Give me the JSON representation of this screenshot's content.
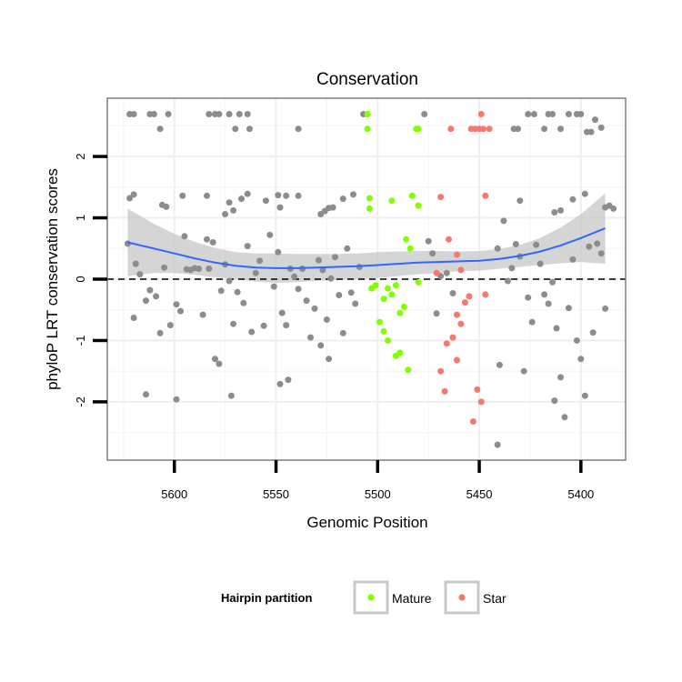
{
  "chart_data": {
    "type": "scatter",
    "title": "Conservation",
    "xlabel": "Genomic Position",
    "ylabel": "phyloP LRT conservation scores",
    "xlim": [
      5633,
      5378
    ],
    "x_reversed": true,
    "ylim": [
      -2.95,
      2.95
    ],
    "x_ticks": [
      5600,
      5550,
      5500,
      5450,
      5400
    ],
    "y_ticks": [
      -2,
      -1,
      0,
      1,
      2
    ],
    "reference_line": {
      "y": 0,
      "style": "dashed"
    },
    "legend": {
      "title": "Hairpin partition",
      "position": "bottom",
      "entries": [
        {
          "name": "Mature",
          "color": "#7FFF00"
        },
        {
          "name": "Star",
          "color": "#F8766D"
        }
      ]
    },
    "colors": {
      "other": "#8c8c8c",
      "smooth": "#3366ff",
      "ribbon": "#c7c7c7"
    },
    "series": [
      {
        "name": "",
        "color": "#8c8c8c",
        "points": [
          [
            5622,
            2.69
          ],
          [
            5620,
            2.69
          ],
          [
            5612,
            2.69
          ],
          [
            5610,
            2.69
          ],
          [
            5607,
            2.45
          ],
          [
            5603,
            2.69
          ],
          [
            5583,
            2.69
          ],
          [
            5580,
            2.69
          ],
          [
            5578,
            2.69
          ],
          [
            5573,
            2.69
          ],
          [
            5568,
            2.69
          ],
          [
            5564,
            2.69
          ],
          [
            5570,
            2.45
          ],
          [
            5563,
            2.45
          ],
          [
            5539,
            2.45
          ],
          [
            5507,
            2.69
          ],
          [
            5477,
            2.69
          ],
          [
            5433,
            2.45
          ],
          [
            5431,
            2.45
          ],
          [
            5426,
            2.69
          ],
          [
            5423,
            2.69
          ],
          [
            5418,
            2.45
          ],
          [
            5416,
            2.69
          ],
          [
            5414,
            2.69
          ],
          [
            5410,
            2.45
          ],
          [
            5406,
            2.69
          ],
          [
            5402,
            2.69
          ],
          [
            5400,
            2.69
          ],
          [
            5397,
            2.4
          ],
          [
            5395,
            2.4
          ],
          [
            5393,
            2.6
          ],
          [
            5390,
            2.47
          ],
          [
            5622,
            1.32
          ],
          [
            5620,
            1.38
          ],
          [
            5606,
            1.21
          ],
          [
            5604,
            1.18
          ],
          [
            5596,
            1.36
          ],
          [
            5584,
            1.36
          ],
          [
            5571,
            1.12
          ],
          [
            5575,
            1.06
          ],
          [
            5573,
            1.25
          ],
          [
            5567,
            1.31
          ],
          [
            5564,
            1.39
          ],
          [
            5555,
            1.28
          ],
          [
            5549,
            1.37
          ],
          [
            5548,
            1.17
          ],
          [
            5545,
            1.36
          ],
          [
            5539,
            1.36
          ],
          [
            5528,
            1.06
          ],
          [
            5526,
            1.11
          ],
          [
            5524,
            1.16
          ],
          [
            5522,
            1.17
          ],
          [
            5517,
            1.31
          ],
          [
            5512,
            1.38
          ],
          [
            5430,
            1.28
          ],
          [
            5413,
            1.09
          ],
          [
            5410,
            1.12
          ],
          [
            5404,
            1.3
          ],
          [
            5398,
            1.39
          ],
          [
            5388,
            1.17
          ],
          [
            5386,
            1.2
          ],
          [
            5384,
            1.15
          ],
          [
            5623,
            0.58
          ],
          [
            5619,
            0.25
          ],
          [
            5620,
            -0.63
          ],
          [
            5617,
            0.08
          ],
          [
            5614,
            -0.35
          ],
          [
            5612,
            -0.18
          ],
          [
            5609,
            -0.28
          ],
          [
            5607,
            -0.88
          ],
          [
            5605,
            0.19
          ],
          [
            5602,
            -0.75
          ],
          [
            5599,
            -0.41
          ],
          [
            5597,
            -0.52
          ],
          [
            5595,
            0.7
          ],
          [
            5594,
            0.16
          ],
          [
            5592,
            0.15
          ],
          [
            5590,
            0.18
          ],
          [
            5588,
            0.17
          ],
          [
            5586,
            -0.58
          ],
          [
            5584,
            0.65
          ],
          [
            5583,
            0.17
          ],
          [
            5581,
            0.6
          ],
          [
            5580,
            -1.3
          ],
          [
            5578,
            -1.38
          ],
          [
            5577,
            -0.19
          ],
          [
            5575,
            0.24
          ],
          [
            5573,
            -0.03
          ],
          [
            5571,
            -0.73
          ],
          [
            5569,
            -0.21
          ],
          [
            5566,
            -0.39
          ],
          [
            5564,
            0.54
          ],
          [
            5562,
            -0.86
          ],
          [
            5560,
            0.1
          ],
          [
            5558,
            0.3
          ],
          [
            5556,
            -0.76
          ],
          [
            5553,
            0.72
          ],
          [
            5551,
            -0.12
          ],
          [
            5549,
            0.44
          ],
          [
            5547,
            -0.55
          ],
          [
            5545,
            -0.75
          ],
          [
            5543,
            0.17
          ],
          [
            5541,
            0.04
          ],
          [
            5539,
            -0.16
          ],
          [
            5537,
            0.17
          ],
          [
            5535,
            -0.35
          ],
          [
            5533,
            -0.95
          ],
          [
            5531,
            -0.48
          ],
          [
            5529,
            0.31
          ],
          [
            5527,
            0.15
          ],
          [
            5525,
            -0.66
          ],
          [
            5523,
            0.01
          ],
          [
            5521,
            0.36
          ],
          [
            5519,
            -0.26
          ],
          [
            5517,
            -0.88
          ],
          [
            5515,
            0.5
          ],
          [
            5513,
            -0.22
          ],
          [
            5511,
            -0.4
          ],
          [
            5509,
            0.2
          ],
          [
            5614,
            -1.88
          ],
          [
            5599,
            -1.96
          ],
          [
            5572,
            -1.9
          ],
          [
            5548,
            -1.71
          ],
          [
            5544,
            -1.64
          ],
          [
            5528,
            -1.08
          ],
          [
            5524,
            -1.3
          ],
          [
            5475,
            0.62
          ],
          [
            5473,
            0.42
          ],
          [
            5471,
            -0.56
          ],
          [
            5469,
            0.05
          ],
          [
            5466,
            0.1
          ],
          [
            5463,
            -0.23
          ],
          [
            5441,
            0.5
          ],
          [
            5440,
            -1.4
          ],
          [
            5438,
            0.95
          ],
          [
            5436,
            -0.03
          ],
          [
            5434,
            0.18
          ],
          [
            5432,
            0.57
          ],
          [
            5430,
            0.37
          ],
          [
            5428,
            -1.5
          ],
          [
            5426,
            -0.3
          ],
          [
            5424,
            -0.7
          ],
          [
            5422,
            0.56
          ],
          [
            5420,
            0.25
          ],
          [
            5418,
            -0.25
          ],
          [
            5416,
            -0.4
          ],
          [
            5414,
            -0.05
          ],
          [
            5412,
            -0.8
          ],
          [
            5410,
            -1.6
          ],
          [
            5408,
            -2.25
          ],
          [
            5406,
            -0.47
          ],
          [
            5404,
            0.32
          ],
          [
            5402,
            -1.0
          ],
          [
            5400,
            -1.3
          ],
          [
            5398,
            -1.9
          ],
          [
            5396,
            0.53
          ],
          [
            5394,
            -0.87
          ],
          [
            5392,
            0.58
          ],
          [
            5390,
            0.42
          ],
          [
            5388,
            -0.48
          ],
          [
            5441,
            -2.7
          ],
          [
            5413,
            -1.98
          ]
        ]
      },
      {
        "name": "Mature",
        "color": "#7FFF00",
        "points": [
          [
            5505,
            2.69
          ],
          [
            5505,
            2.45
          ],
          [
            5481,
            2.45
          ],
          [
            5480,
            2.45
          ],
          [
            5504,
            1.15
          ],
          [
            5504,
            1.32
          ],
          [
            5493,
            1.28
          ],
          [
            5483,
            1.36
          ],
          [
            5480,
            1.2
          ],
          [
            5486,
            0.65
          ],
          [
            5484,
            0.5
          ],
          [
            5480,
            -0.05
          ],
          [
            5503,
            -0.15
          ],
          [
            5501,
            -0.1
          ],
          [
            5499,
            -0.7
          ],
          [
            5497,
            -0.32
          ],
          [
            5497,
            -0.85
          ],
          [
            5495,
            -0.15
          ],
          [
            5493,
            -0.25
          ],
          [
            5491,
            -0.1
          ],
          [
            5489,
            -0.55
          ],
          [
            5487,
            -0.45
          ],
          [
            5495,
            -1.0
          ],
          [
            5491,
            -1.25
          ],
          [
            5489,
            -1.2
          ],
          [
            5485,
            -1.48
          ]
        ]
      },
      {
        "name": "Star",
        "color": "#F8766D",
        "points": [
          [
            5464,
            2.45
          ],
          [
            5454,
            2.45
          ],
          [
            5452,
            2.45
          ],
          [
            5450,
            2.45
          ],
          [
            5448,
            2.45
          ],
          [
            5445,
            2.45
          ],
          [
            5449,
            2.69
          ],
          [
            5469,
            1.34
          ],
          [
            5447,
            1.36
          ],
          [
            5465,
            0.65
          ],
          [
            5471,
            0.1
          ],
          [
            5459,
            0.15
          ],
          [
            5461,
            0.4
          ],
          [
            5455,
            -0.28
          ],
          [
            5457,
            -0.38
          ],
          [
            5447,
            -0.25
          ],
          [
            5461,
            -0.58
          ],
          [
            5459,
            -0.73
          ],
          [
            5463,
            -0.95
          ],
          [
            5466,
            -1.05
          ],
          [
            5461,
            -1.32
          ],
          [
            5469,
            -1.5
          ],
          [
            5467,
            -1.83
          ],
          [
            5451,
            -1.8
          ],
          [
            5449,
            -2.0
          ],
          [
            5453,
            -2.32
          ]
        ]
      }
    ],
    "smooth": {
      "x": [
        5623,
        5610,
        5600,
        5590,
        5580,
        5570,
        5560,
        5550,
        5540,
        5530,
        5520,
        5510,
        5500,
        5490,
        5480,
        5470,
        5460,
        5450,
        5440,
        5430,
        5420,
        5410,
        5400,
        5388
      ],
      "y": [
        0.6,
        0.5,
        0.42,
        0.34,
        0.27,
        0.22,
        0.19,
        0.18,
        0.18,
        0.19,
        0.2,
        0.21,
        0.23,
        0.25,
        0.27,
        0.28,
        0.29,
        0.3,
        0.33,
        0.38,
        0.45,
        0.55,
        0.67,
        0.83
      ],
      "ymin": [
        0.05,
        0.1,
        0.1,
        0.07,
        0.03,
        0.0,
        -0.04,
        -0.06,
        -0.05,
        -0.03,
        -0.01,
        0.0,
        0.02,
        0.05,
        0.08,
        0.1,
        0.13,
        0.14,
        0.17,
        0.2,
        0.23,
        0.26,
        0.28,
        0.25
      ],
      "ymax": [
        1.15,
        0.9,
        0.74,
        0.61,
        0.51,
        0.44,
        0.42,
        0.42,
        0.41,
        0.41,
        0.41,
        0.42,
        0.44,
        0.45,
        0.46,
        0.46,
        0.45,
        0.46,
        0.49,
        0.56,
        0.67,
        0.84,
        1.06,
        1.4
      ]
    }
  }
}
